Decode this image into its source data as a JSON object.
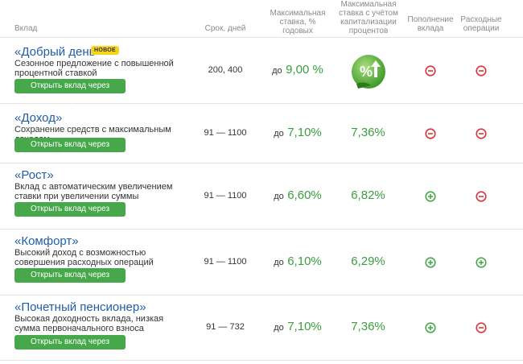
{
  "header": {
    "col_name": "Вклад",
    "col_term": "Срок, дней",
    "col_rate": [
      "Максимальная",
      "ставка, %",
      "годовых"
    ],
    "col_cap": [
      "Максимальная",
      "ставка с учётом",
      "капитализации",
      "процентов"
    ],
    "col_topup": [
      "Пополнение",
      "вклада"
    ],
    "col_spend": [
      "Расходные",
      "операции"
    ]
  },
  "colors": {
    "green": "#46a84a",
    "red": "#d9343d",
    "link": "#1f5ea8",
    "badge": "#f5d51c"
  },
  "rows": [
    {
      "title": "«Добрый день»",
      "badge": "НОВОЕ",
      "desc": "Сезонное предложение с повышенной процентной ставкой",
      "button": "Открыть вклад через интернет",
      "term": "200, 400",
      "rate_prefix": "до",
      "rate": "9,00 %",
      "cap": "",
      "cap_icon": "percent-arrow-up-icon",
      "topup": "no",
      "spend": "no"
    },
    {
      "title": "«Доход»",
      "desc": "Сохранение средств с максимальным доходом",
      "button": "Открыть вклад через интернет",
      "term": "91 — 1100",
      "rate_prefix": "до",
      "rate": "7,10%",
      "cap": "7,36%",
      "topup": "no",
      "spend": "no"
    },
    {
      "title": "«Рост»",
      "desc": "Вклад с автоматическим увеличением ставки при увеличении суммы",
      "button": "Открыть вклад через интернет",
      "term": "91 — 1100",
      "rate_prefix": "до",
      "rate": "6,60%",
      "cap": "6,82%",
      "topup": "yes",
      "spend": "no"
    },
    {
      "title": "«Комфорт»",
      "desc": "Высокий доход с возможностью совершения расходных операций",
      "button": "Открыть вклад через интернет",
      "term": "91 — 1100",
      "rate_prefix": "до",
      "rate": "6,10%",
      "cap": "6,29%",
      "topup": "yes",
      "spend": "yes"
    },
    {
      "title": "«Почетный пенсионер»",
      "desc": "Высокая доходность вклада, низкая сумма первоначального взноса",
      "button": "Открыть вклад через интернет",
      "term": "91 — 732",
      "rate_prefix": "до",
      "rate": "7,10%",
      "cap": "7,36%",
      "topup": "yes",
      "spend": "no"
    }
  ]
}
